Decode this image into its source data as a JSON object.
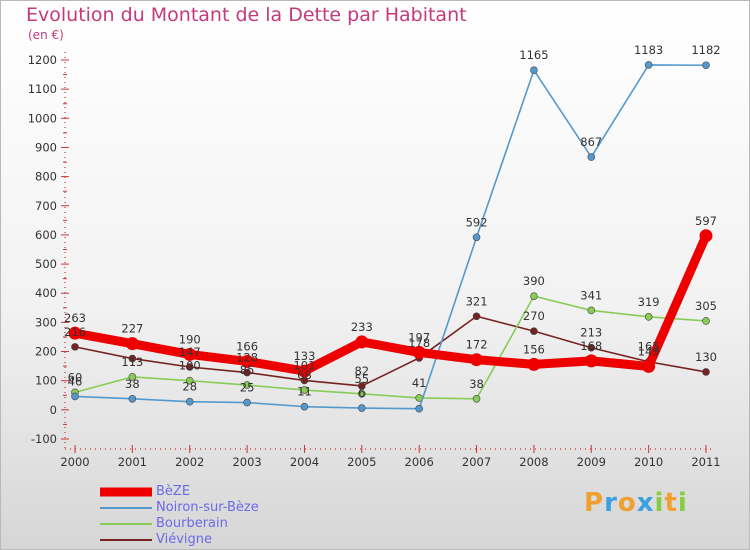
{
  "header": {
    "title": "Evolution du Montant de la Dette par Habitant",
    "subtitle": "(en €)"
  },
  "logo": {
    "letters": [
      "P",
      "r",
      "o",
      "x",
      "i",
      "t",
      "i"
    ],
    "colors": [
      "#f0a030",
      "#3aa0e0",
      "#f0a030",
      "#3aa0e0",
      "#88cc44",
      "#f0a030",
      "#88cc44"
    ]
  },
  "chart_data": {
    "type": "line",
    "title": "Evolution du Montant de la Dette par Habitant",
    "ylabel": "(en €)",
    "xlabel": "",
    "categories": [
      "2000",
      "2001",
      "2002",
      "2003",
      "2004",
      "2005",
      "2006",
      "2007",
      "2008",
      "2009",
      "2010",
      "2011"
    ],
    "ylim": [
      -100,
      1200
    ],
    "yticks": [
      -100,
      0,
      100,
      200,
      300,
      400,
      500,
      600,
      700,
      800,
      900,
      1000,
      1100,
      1200
    ],
    "grid": false,
    "legend_position": "bottom-left",
    "series": [
      {
        "name": "BèZE",
        "color": "#ee0000",
        "values": [
          263,
          227,
          190,
          166,
          133,
          233,
          197,
          172,
          156,
          168,
          149,
          597
        ],
        "labels": [
          "263",
          "227",
          "190",
          "166",
          "133",
          "233",
          "197",
          "172",
          "156",
          "168",
          "149",
          "597"
        ]
      },
      {
        "name": "Noiron-sur-Bèze",
        "color": "#5599cc",
        "values": [
          46,
          38,
          28,
          25,
          11,
          6,
          4,
          592,
          1165,
          867,
          1183,
          1182
        ],
        "labels": [
          "46",
          "38",
          "28",
          "25",
          "11",
          "6",
          "",
          "592",
          "1165",
          "867",
          "1183",
          "1182"
        ]
      },
      {
        "name": "Bourberain",
        "color": "#88cc55",
        "values": [
          60,
          113,
          100,
          85,
          68,
          55,
          41,
          38,
          390,
          341,
          319,
          305
        ],
        "labels": [
          "60",
          "113",
          "100",
          "85",
          "68",
          "55",
          "41",
          "38",
          "390",
          "341",
          "319",
          "305"
        ]
      },
      {
        "name": "Viévigne",
        "color": "#772222",
        "values": [
          216,
          176,
          147,
          128,
          101,
          82,
          178,
          321,
          270,
          213,
          165,
          130
        ],
        "labels": [
          "216",
          "",
          "147",
          "128",
          "101",
          "82",
          "178",
          "321",
          "270",
          "213",
          "165",
          "130"
        ]
      }
    ]
  }
}
